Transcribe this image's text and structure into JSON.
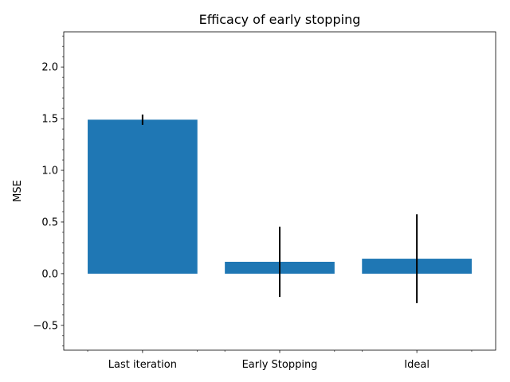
{
  "chart_data": {
    "type": "bar",
    "title": "Efficacy of early stopping",
    "xlabel": "",
    "ylabel": "MSE",
    "categories": [
      "Last iteration",
      "Early Stopping",
      "Ideal"
    ],
    "values": [
      1.49,
      0.115,
      0.145
    ],
    "error": [
      0.05,
      0.34,
      0.43
    ],
    "ylim": [
      -0.74,
      2.34
    ],
    "yticks": [
      -0.5,
      0.0,
      0.5,
      1.0,
      1.5,
      2.0
    ],
    "ytick_labels": [
      "−0.5",
      "0.0",
      "0.5",
      "1.0",
      "1.5",
      "2.0"
    ],
    "minor_ticks": true,
    "grid": false,
    "bar_color": "#1f77b4",
    "error_color": "#000000"
  }
}
